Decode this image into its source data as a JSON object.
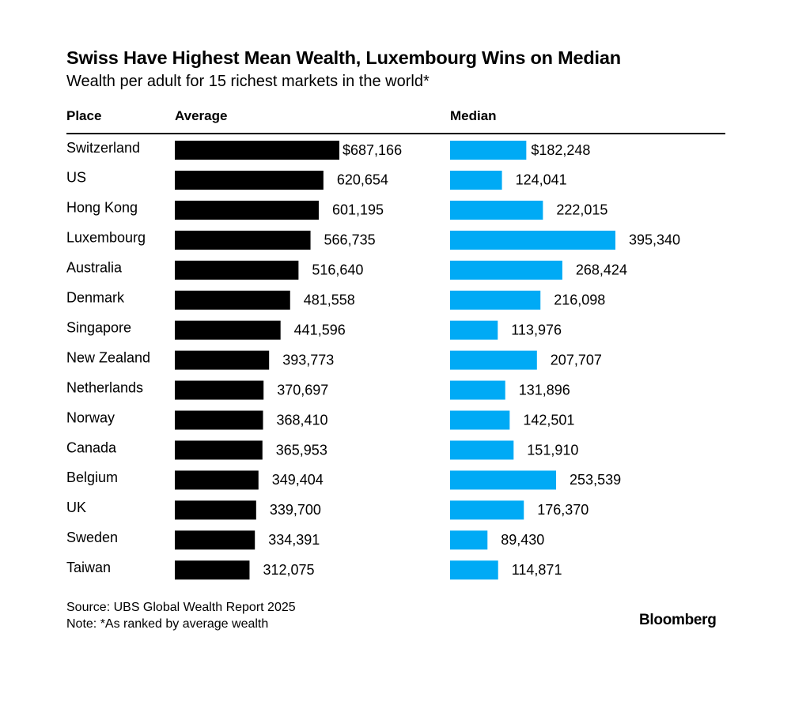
{
  "header": {
    "title": "Swiss Have Highest Mean Wealth, Luxembourg Wins on Median",
    "subtitle": "Wealth per adult for 15 richest markets in the world*"
  },
  "columns": {
    "place": "Place",
    "average": "Average",
    "median": "Median"
  },
  "footer": {
    "source": "Source: UBS Global Wealth Report 2025",
    "note": "Note: *As ranked by average wealth",
    "brand": "Bloomberg"
  },
  "colors": {
    "average_bar": "#000000",
    "median_bar": "#00aaf5",
    "text": "#000000"
  },
  "chart_data": {
    "type": "bar",
    "orientation": "horizontal",
    "categories": [
      "Switzerland",
      "US",
      "Hong Kong",
      "Luxembourg",
      "Australia",
      "Denmark",
      "Singapore",
      "New Zealand",
      "Netherlands",
      "Norway",
      "Canada",
      "Belgium",
      "UK",
      "Sweden",
      "Taiwan"
    ],
    "series": [
      {
        "name": "Average",
        "values": [
          687166,
          620654,
          601195,
          566735,
          516640,
          481558,
          441596,
          393773,
          370697,
          368410,
          365953,
          349404,
          339700,
          334391,
          312075
        ],
        "labels": [
          "$687,166",
          "620,654",
          "601,195",
          "566,735",
          "516,640",
          "481,558",
          "441,596",
          "393,773",
          "370,697",
          "368,410",
          "365,953",
          "349,404",
          "339,700",
          "334,391",
          "312,075"
        ]
      },
      {
        "name": "Median",
        "values": [
          182248,
          124041,
          222015,
          395340,
          268424,
          216098,
          113976,
          207707,
          131896,
          142501,
          151910,
          253539,
          176370,
          89430,
          114871
        ],
        "labels": [
          "$182,248",
          "124,041",
          "222,015",
          "395,340",
          "268,424",
          "216,098",
          "113,976",
          "207,707",
          "131,896",
          "142,501",
          "151,910",
          "253,539",
          "176,370",
          "89,430",
          "114,871"
        ]
      }
    ],
    "grid": false,
    "legend": "none"
  }
}
